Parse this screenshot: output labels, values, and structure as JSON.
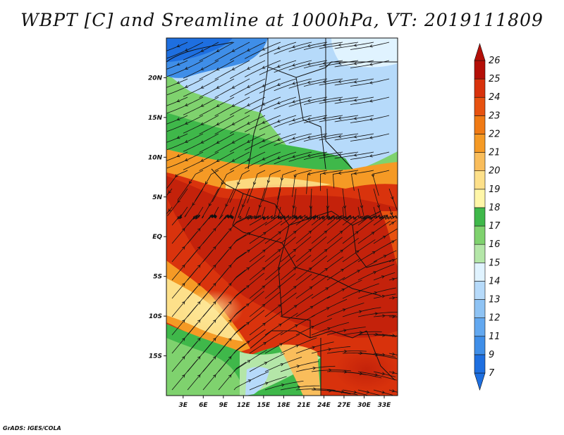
{
  "title": "WBPT [C] and Sreamline at 1000hPa, VT: 2019111809",
  "footer": "GrADS: IGES/COLA",
  "map": {
    "lat_labels": [
      "20N",
      "15N",
      "10N",
      "5N",
      "EQ",
      "5S",
      "10S",
      "15S"
    ],
    "lat_values": [
      20,
      15,
      10,
      5,
      0,
      -5,
      -10,
      -15
    ],
    "lon_labels": [
      "3E",
      "6E",
      "9E",
      "12E",
      "15E",
      "18E",
      "21E",
      "24E",
      "27E",
      "30E",
      "33E"
    ],
    "lon_values": [
      3,
      6,
      9,
      12,
      15,
      18,
      21,
      24,
      27,
      30,
      33
    ],
    "lon_range": [
      0.5,
      35
    ],
    "lat_range": [
      -20,
      25
    ]
  },
  "colorbar": {
    "labels": [
      "7",
      "9",
      "11",
      "12",
      "13",
      "14",
      "15",
      "16",
      "17",
      "18",
      "19",
      "20",
      "21",
      "22",
      "23",
      "24",
      "25",
      "26"
    ],
    "colors": [
      "#1e6fe0",
      "#3f8ee8",
      "#62a8f0",
      "#8ec3f4",
      "#b6dafa",
      "#e0f3ff",
      "#b4e6a8",
      "#7fd26e",
      "#3fb84a",
      "#fff6a8",
      "#fde08a",
      "#f9bd5b",
      "#f59a25",
      "#f07a14",
      "#e75210",
      "#d8320c",
      "#b40f08"
    ]
  }
}
